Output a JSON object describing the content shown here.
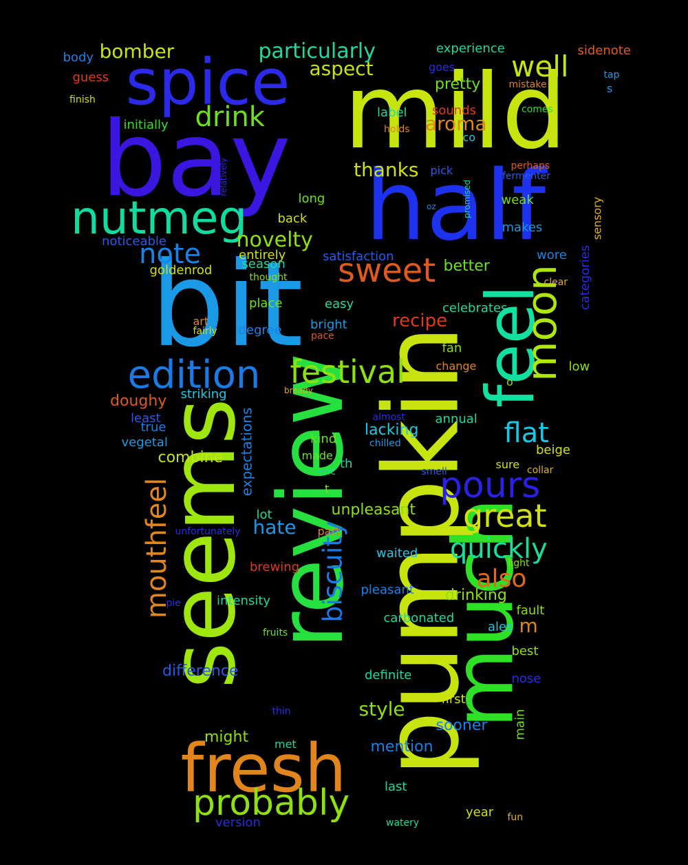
{
  "background": "#000000",
  "words": [
    {
      "text": "mild",
      "color": "#c8e40e"
    },
    {
      "text": "bay",
      "color": "#3a16e0"
    },
    {
      "text": "half",
      "color": "#1c32ee"
    },
    {
      "text": "bit",
      "color": "#1a9ae6"
    },
    {
      "text": "pumpkin",
      "color": "#c8e40e"
    },
    {
      "text": "review",
      "color": "#26e040"
    },
    {
      "text": "seems",
      "color": "#9ee60e"
    },
    {
      "text": "much",
      "color": "#2ee026"
    },
    {
      "text": "feel",
      "color": "#12e0a0"
    },
    {
      "text": "spice",
      "color": "#2a2ae8"
    },
    {
      "text": "fresh",
      "color": "#e0861c"
    },
    {
      "text": "nutmeg",
      "color": "#10dca0"
    },
    {
      "text": "edition",
      "color": "#1a7ae6"
    },
    {
      "text": "moon",
      "color": "#aee60e"
    },
    {
      "text": "probably",
      "color": "#8ee00e"
    },
    {
      "text": "festival",
      "color": "#8ee00e"
    },
    {
      "text": "sweet",
      "color": "#e05a1c"
    },
    {
      "text": "pours",
      "color": "#2a20e6"
    },
    {
      "text": "great",
      "color": "#d0e010"
    },
    {
      "text": "mouthfeel",
      "color": "#e0861c"
    },
    {
      "text": "biscuity",
      "color": "#1a7ae6"
    },
    {
      "text": "note",
      "color": "#1a82e6"
    },
    {
      "text": "quickly",
      "color": "#16e0a0"
    },
    {
      "text": "flat",
      "color": "#16c8e6"
    },
    {
      "text": "well",
      "color": "#c8e40e"
    },
    {
      "text": "drink",
      "color": "#6ee020"
    },
    {
      "text": "also",
      "color": "#e06a1c"
    },
    {
      "text": "particularly",
      "color": "#22d8a0"
    },
    {
      "text": "novelty",
      "color": "#8ee00e"
    },
    {
      "text": "bomber",
      "color": "#c8e40e"
    },
    {
      "text": "aroma",
      "color": "#e0861c"
    },
    {
      "text": "thanks",
      "color": "#d0e010"
    },
    {
      "text": "aspect",
      "color": "#c8e40e"
    },
    {
      "text": "expectations",
      "color": "#1a82e6"
    },
    {
      "text": "hate",
      "color": "#1a9ae6"
    },
    {
      "text": "recipe",
      "color": "#e03a1c"
    },
    {
      "text": "style",
      "color": "#8ee00e"
    },
    {
      "text": "doughy",
      "color": "#e05a1c"
    },
    {
      "text": "difference",
      "color": "#2a5ae8"
    },
    {
      "text": "combine",
      "color": "#c8e40e"
    },
    {
      "text": "lacking",
      "color": "#22c8e0"
    },
    {
      "text": "unpleasant",
      "color": "#8ee00e"
    },
    {
      "text": "pretty",
      "color": "#6ee020"
    },
    {
      "text": "better",
      "color": "#6ee020"
    },
    {
      "text": "might",
      "color": "#8ee00e"
    },
    {
      "text": "drinking",
      "color": "#8ee00e"
    },
    {
      "text": "sooner",
      "color": "#1a82e6"
    },
    {
      "text": "mention",
      "color": "#1a82e6"
    },
    {
      "text": "m",
      "color": "#e0861c"
    },
    {
      "text": "goldenrod",
      "color": "#d0e010"
    },
    {
      "text": "satisfaction",
      "color": "#2a5ae8"
    },
    {
      "text": "noticeable",
      "color": "#2a5ae8"
    },
    {
      "text": "initially",
      "color": "#2ee026"
    },
    {
      "text": "experience",
      "color": "#22d8a0"
    },
    {
      "text": "sidenote",
      "color": "#e05a1c"
    },
    {
      "text": "body",
      "color": "#1a82e6"
    },
    {
      "text": "guess",
      "color": "#e03a1c"
    },
    {
      "text": "finish",
      "color": "#d0e010"
    },
    {
      "text": "goes",
      "color": "#2a2ae8"
    },
    {
      "text": "mistake",
      "color": "#e0861c"
    },
    {
      "text": "tap",
      "color": "#1a9ae6"
    },
    {
      "text": "s",
      "color": "#1a9ae6"
    },
    {
      "text": "sounds",
      "color": "#e03a1c"
    },
    {
      "text": "comes",
      "color": "#2ee026"
    },
    {
      "text": "label",
      "color": "#22d8a0"
    },
    {
      "text": "holds",
      "color": "#e0861c"
    },
    {
      "text": "co",
      "color": "#22c8e0"
    },
    {
      "text": "pick",
      "color": "#2a5ae8"
    },
    {
      "text": "perhaps",
      "color": "#e05a1c"
    },
    {
      "text": "fermenter",
      "color": "#2a5ae8"
    },
    {
      "text": "relatively",
      "color": "#2a2ae8"
    },
    {
      "text": "long",
      "color": "#6ee020"
    },
    {
      "text": "weak",
      "color": "#6ee020"
    },
    {
      "text": "promised",
      "color": "#22d8a0"
    },
    {
      "text": "oz",
      "color": "#1a82e6"
    },
    {
      "text": "sensory",
      "color": "#e0b01c"
    },
    {
      "text": "back",
      "color": "#d0e010"
    },
    {
      "text": "makes",
      "color": "#1a9ae6"
    },
    {
      "text": "categories",
      "color": "#2a2ae8"
    },
    {
      "text": "entirely",
      "color": "#d0e010"
    },
    {
      "text": "season",
      "color": "#22d8a0"
    },
    {
      "text": "wore",
      "color": "#1a82e6"
    },
    {
      "text": "thought",
      "color": "#8ee00e"
    },
    {
      "text": "clear",
      "color": "#e0b01c"
    },
    {
      "text": "place",
      "color": "#6ee020"
    },
    {
      "text": "easy",
      "color": "#22d8a0"
    },
    {
      "text": "celebrates",
      "color": "#22d8a0"
    },
    {
      "text": "art",
      "color": "#e0861c"
    },
    {
      "text": "degree",
      "color": "#1a82e6"
    },
    {
      "text": "bright",
      "color": "#1a9ae6"
    },
    {
      "text": "fairly",
      "color": "#d0e010"
    },
    {
      "text": "pace",
      "color": "#e05a1c"
    },
    {
      "text": "fan",
      "color": "#8ee00e"
    },
    {
      "text": "change",
      "color": "#e0861c"
    },
    {
      "text": "low",
      "color": "#8ee00e"
    },
    {
      "text": "striking",
      "color": "#22c8e0"
    },
    {
      "text": "bready",
      "color": "#e0b01c"
    },
    {
      "text": "o",
      "color": "#8ee00e"
    },
    {
      "text": "least",
      "color": "#2a5ae8"
    },
    {
      "text": "true",
      "color": "#1a82e6"
    },
    {
      "text": "vegetal",
      "color": "#1a9ae6"
    },
    {
      "text": "annual",
      "color": "#22d8a0"
    },
    {
      "text": "almost",
      "color": "#2a2ae8"
    },
    {
      "text": "kind",
      "color": "#6ee020"
    },
    {
      "text": "chilled",
      "color": "#1a9ae6"
    },
    {
      "text": "beige",
      "color": "#d0e010"
    },
    {
      "text": "made",
      "color": "#6ee020"
    },
    {
      "text": "th",
      "color": "#22d8a0"
    },
    {
      "text": "sure",
      "color": "#d0e010"
    },
    {
      "text": "eric",
      "color": "#22d8a0"
    },
    {
      "text": "smell",
      "color": "#2a5ae8"
    },
    {
      "text": "collar",
      "color": "#e0b01c"
    },
    {
      "text": "t",
      "color": "#8ee00e"
    },
    {
      "text": "lot",
      "color": "#22d8a0"
    },
    {
      "text": "unfortunately",
      "color": "#2a2ae8"
    },
    {
      "text": "part",
      "color": "#e0861c"
    },
    {
      "text": "waited",
      "color": "#22c8e0"
    },
    {
      "text": "light",
      "color": "#8ee00e"
    },
    {
      "text": "brewing",
      "color": "#e03a1c"
    },
    {
      "text": "pleasant",
      "color": "#1a82e6"
    },
    {
      "text": "intensity",
      "color": "#22d8a0"
    },
    {
      "text": "pie",
      "color": "#2a2ae8"
    },
    {
      "text": "fault",
      "color": "#8ee00e"
    },
    {
      "text": "carbonated",
      "color": "#22d8a0"
    },
    {
      "text": "ales",
      "color": "#22c8e0"
    },
    {
      "text": "fruits",
      "color": "#6ee020"
    },
    {
      "text": "best",
      "color": "#8ee00e"
    },
    {
      "text": "definite",
      "color": "#22d8a0"
    },
    {
      "text": "nose",
      "color": "#2a2ae8"
    },
    {
      "text": "first",
      "color": "#d0e010"
    },
    {
      "text": "thin",
      "color": "#2a2ae8"
    },
    {
      "text": "main",
      "color": "#6ee020"
    },
    {
      "text": "met",
      "color": "#22d8a0"
    },
    {
      "text": "last",
      "color": "#22d8a0"
    },
    {
      "text": "year",
      "color": "#d0e010"
    },
    {
      "text": "version",
      "color": "#2a2ae8"
    },
    {
      "text": "watery",
      "color": "#22d8a0"
    },
    {
      "text": "fun",
      "color": "#e0b01c"
    }
  ]
}
